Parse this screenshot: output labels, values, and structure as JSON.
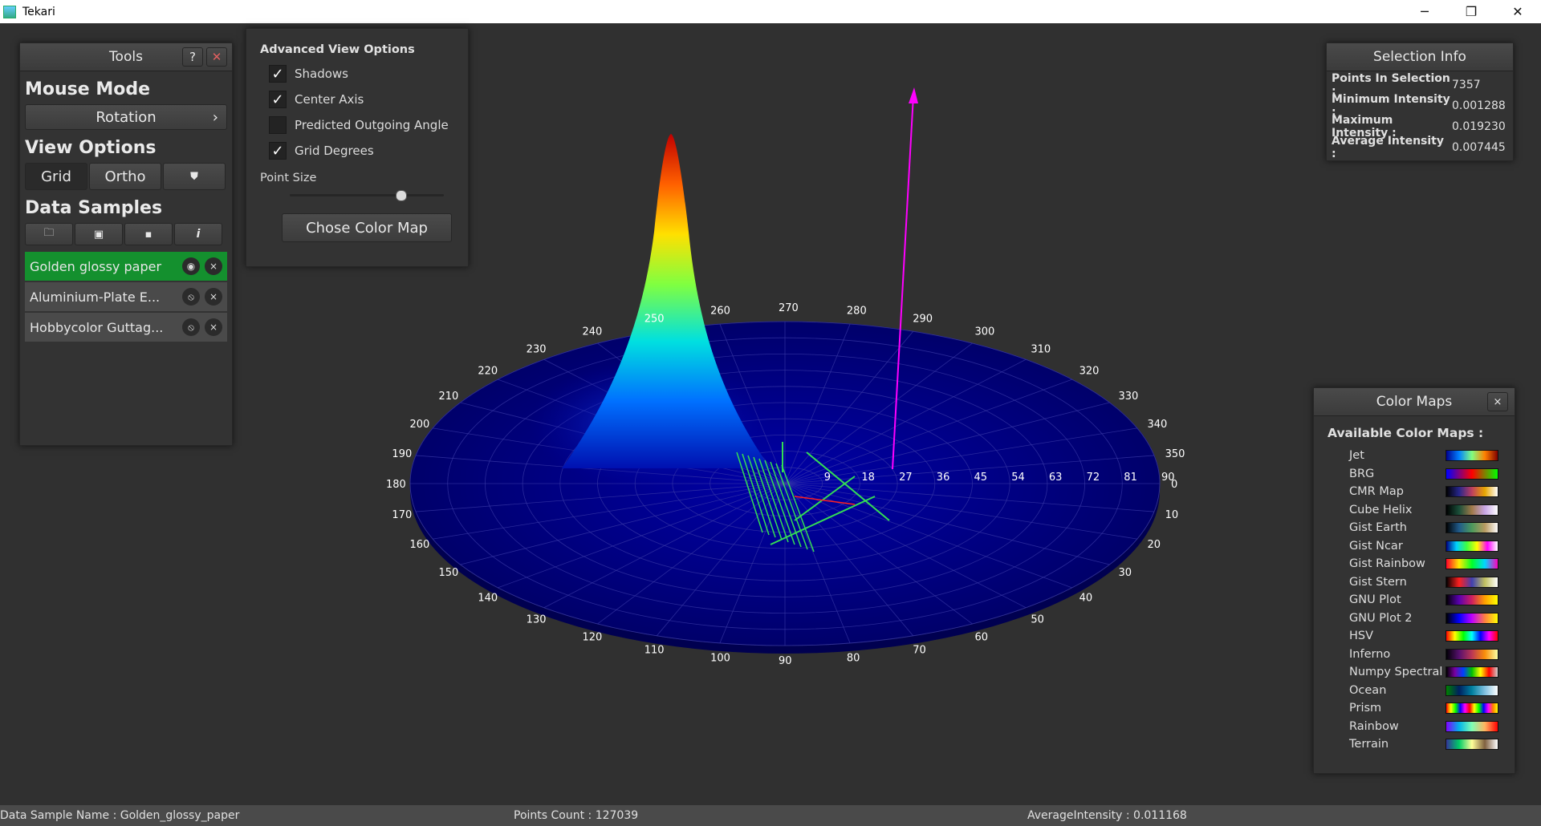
{
  "window": {
    "title": "Tekari",
    "minimize": "─",
    "maximize": "❐",
    "close": "✕"
  },
  "tools": {
    "header": "Tools",
    "help": "?",
    "pin": "✕",
    "mouse_mode_title": "Mouse Mode",
    "mouse_mode_value": "Rotation",
    "mouse_mode_arrow": "›",
    "view_options_title": "View Options",
    "view_buttons": [
      "Grid",
      "Ortho",
      "⛊"
    ],
    "data_samples_title": "Data Samples",
    "sample_tools": [
      "🗀",
      "▣",
      "▪",
      "i"
    ],
    "samples": [
      {
        "name": "Golden glossy paper",
        "visible_icon": "◉",
        "remove": "×"
      },
      {
        "name": "Aluminium-Plate E...",
        "visible_icon": "⦸",
        "remove": "×"
      },
      {
        "name": "Hobbycolor Guttag...",
        "visible_icon": "⦸",
        "remove": "×"
      }
    ]
  },
  "advanced": {
    "title": "Advanced View Options",
    "options": [
      {
        "label": "Shadows",
        "checked": true
      },
      {
        "label": "Center Axis",
        "checked": true
      },
      {
        "label": "Predicted Outgoing Angle",
        "checked": false
      },
      {
        "label": "Grid Degrees",
        "checked": true
      }
    ],
    "point_size_label": "Point Size",
    "point_size_level": 0.72,
    "color_map_button": "Chose Color Map"
  },
  "selection": {
    "header": "Selection Info",
    "rows": [
      {
        "k": "Points In Selection :",
        "v": "7357"
      },
      {
        "k": "Minimum Intensity :",
        "v": "0.001288"
      },
      {
        "k": "Maximum Intensity :",
        "v": "0.019230"
      },
      {
        "k": "Average Intensity :",
        "v": "0.007445"
      }
    ]
  },
  "colormaps": {
    "header": "Color Maps",
    "close": "×",
    "subtitle": "Available Color Maps :",
    "items": [
      {
        "name": "Jet",
        "colors": [
          "#00008f",
          "#0080ff",
          "#80ff80",
          "#ff8000",
          "#800000"
        ]
      },
      {
        "name": "BRG",
        "colors": [
          "#0000ff",
          "#ff0000",
          "#00ff00"
        ]
      },
      {
        "name": "CMR Map",
        "colors": [
          "#000000",
          "#26268c",
          "#bf3f5f",
          "#e6a600",
          "#ffffff"
        ]
      },
      {
        "name": "Cube Helix",
        "colors": [
          "#000000",
          "#1a4f3a",
          "#a17a4a",
          "#c8a6e6",
          "#ffffff"
        ]
      },
      {
        "name": "Gist Earth",
        "colors": [
          "#000000",
          "#205a8a",
          "#4c9a5c",
          "#b89a60",
          "#fdfbfb"
        ]
      },
      {
        "name": "Gist Ncar",
        "colors": [
          "#000080",
          "#00d0ff",
          "#40ff40",
          "#ffff00",
          "#ff00ff",
          "#ffffff"
        ]
      },
      {
        "name": "Gist Rainbow",
        "colors": [
          "#ff0029",
          "#ffeb00",
          "#00ff28",
          "#00d6ff",
          "#ff00bf"
        ]
      },
      {
        "name": "Gist Stern",
        "colors": [
          "#000000",
          "#ff2020",
          "#4040b0",
          "#c0c060",
          "#ffffff"
        ]
      },
      {
        "name": "GNU Plot",
        "colors": [
          "#000000",
          "#5a00b0",
          "#d02060",
          "#ffa000",
          "#ffff00"
        ]
      },
      {
        "name": "GNU Plot 2",
        "colors": [
          "#000000",
          "#0000ff",
          "#c000ff",
          "#ff8040",
          "#ffff00"
        ]
      },
      {
        "name": "HSV",
        "colors": [
          "#ff0000",
          "#ffff00",
          "#00ff00",
          "#00ffff",
          "#0000ff",
          "#ff00ff",
          "#ff0000"
        ]
      },
      {
        "name": "Inferno",
        "colors": [
          "#000004",
          "#57106e",
          "#bc3754",
          "#f98e09",
          "#fcffa4"
        ]
      },
      {
        "name": "Numpy Spectral",
        "colors": [
          "#000000",
          "#7a00a0",
          "#0040ff",
          "#00c000",
          "#ffff00",
          "#ff0000",
          "#cccccc"
        ]
      },
      {
        "name": "Ocean",
        "colors": [
          "#008000",
          "#002060",
          "#0080a0",
          "#80c0e0",
          "#ffffff"
        ]
      },
      {
        "name": "Prism",
        "colors": [
          "#ff0000",
          "#ffff00",
          "#00ff00",
          "#0000ff",
          "#ff00ff",
          "#ff0000",
          "#ffff00",
          "#00ff00",
          "#0000ff",
          "#ff00ff",
          "#ff8000",
          "#ffff00"
        ]
      },
      {
        "name": "Rainbow",
        "colors": [
          "#8000ff",
          "#00b4eb",
          "#80ffb4",
          "#ffb460",
          "#ff0000"
        ]
      },
      {
        "name": "Terrain",
        "colors": [
          "#333399",
          "#00cc66",
          "#ffff99",
          "#806040",
          "#ffffff"
        ]
      }
    ]
  },
  "plot": {
    "ring_labels": [
      "9",
      "18",
      "27",
      "36",
      "45",
      "54",
      "63",
      "72",
      "81",
      "90"
    ],
    "azimuth_labels": [
      "0",
      "10",
      "20",
      "30",
      "40",
      "50",
      "60",
      "70",
      "80",
      "90",
      "100",
      "110",
      "120",
      "130",
      "140",
      "150",
      "160",
      "170",
      "180",
      "190",
      "200",
      "210",
      "220",
      "230",
      "240",
      "250",
      "260",
      "270",
      "280",
      "290",
      "300",
      "310",
      "320",
      "330",
      "340",
      "350"
    ],
    "accent_axis": "#ff00ff",
    "disk_color": "#00007a",
    "selection_color": "#33dd55"
  },
  "status": {
    "name": "Data Sample Name : Golden_glossy_paper",
    "count": "Points Count : 127039",
    "avg": "AverageIntensity : 0.011168"
  }
}
